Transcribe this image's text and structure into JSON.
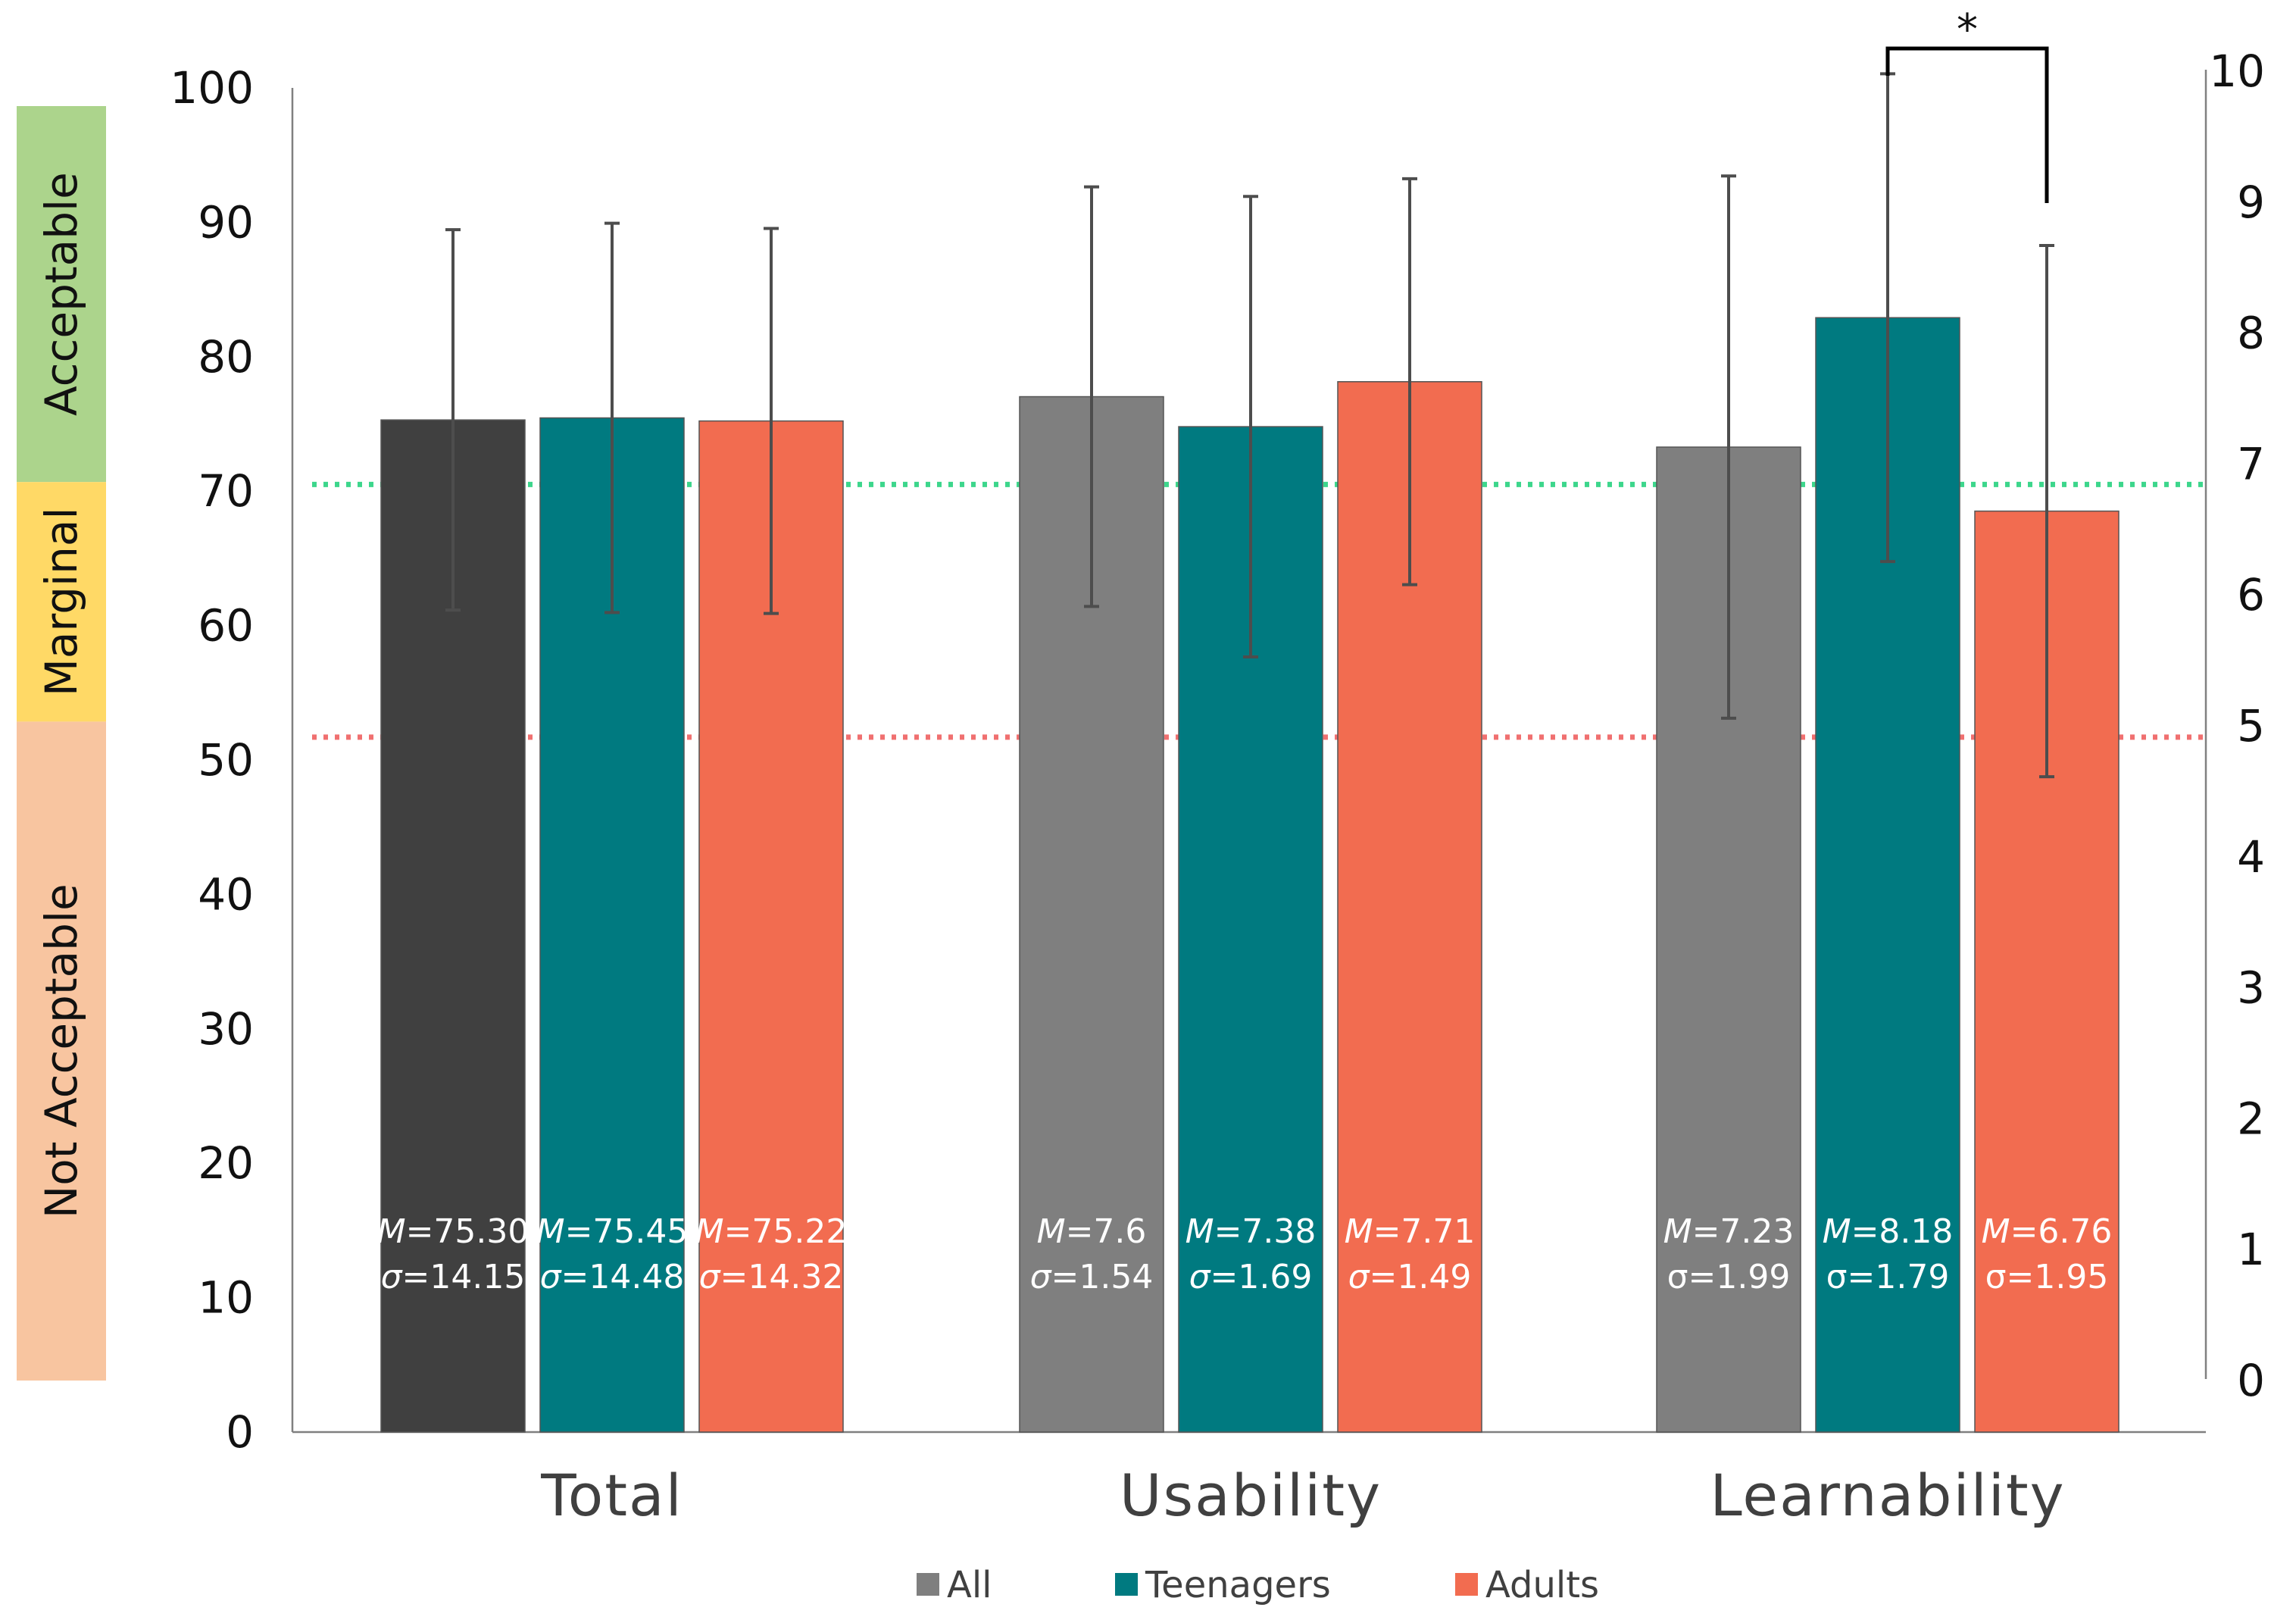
{
  "chart_data": {
    "type": "bar",
    "categories": [
      "Total",
      "Usability",
      "Learnability"
    ],
    "series": [
      {
        "name": "All",
        "color": "#7f7f7f",
        "colors": [
          "#404040",
          "#7f7f7f",
          "#7f7f7f"
        ],
        "values": [
          75.3,
          7.6,
          7.23
        ],
        "sd": [
          14.15,
          1.54,
          1.99
        ],
        "mean_labels": [
          "75.30",
          "7.6",
          "7.23"
        ],
        "sd_labels": [
          "14.15",
          "1.54",
          "1.99"
        ],
        "sd_italic": [
          true,
          true,
          false
        ]
      },
      {
        "name": "Teenagers",
        "color": "#007a80",
        "values": [
          75.45,
          7.38,
          8.18
        ],
        "sd": [
          14.48,
          1.69,
          1.79
        ],
        "mean_labels": [
          "75.45",
          "7.38",
          "8.18"
        ],
        "sd_labels": [
          "14.48",
          "1.69",
          "1.79"
        ],
        "sd_italic": [
          true,
          true,
          false
        ]
      },
      {
        "name": "Adults",
        "color": "#f26c50",
        "values": [
          75.22,
          7.71,
          6.76
        ],
        "sd": [
          14.32,
          1.49,
          1.95
        ],
        "mean_labels": [
          "75.22",
          "7.71",
          "6.76"
        ],
        "sd_labels": [
          "14.32",
          "1.49",
          "1.95"
        ],
        "sd_italic": [
          true,
          true,
          false
        ]
      }
    ],
    "axis_assignment": [
      "left",
      "right",
      "right"
    ],
    "y_left": {
      "range": [
        0,
        100
      ],
      "ticks": [
        "0",
        "10",
        "20",
        "30",
        "40",
        "50",
        "60",
        "70",
        "80",
        "90",
        "100"
      ]
    },
    "y_right": {
      "range": [
        0,
        10
      ],
      "ticks": [
        "0",
        "1",
        "2",
        "3",
        "4",
        "5",
        "6",
        "7",
        "8",
        "9",
        "10"
      ]
    },
    "thresholds": [
      {
        "value": 70.5,
        "color": "#3dd68c"
      },
      {
        "value": 51.7,
        "color": "#f07070"
      }
    ],
    "acceptability_bands": [
      {
        "label": "Acceptable",
        "from": 70.5,
        "to": 100,
        "color": "#acd48c"
      },
      {
        "label": "Marginal",
        "from": 51.7,
        "to": 70.5,
        "color": "#ffd966"
      },
      {
        "label": "Not Acceptable",
        "from": 0,
        "to": 51.7,
        "color": "#f8c5a0"
      }
    ],
    "significance": {
      "category": "Learnability",
      "between": [
        "Teenagers",
        "Adults"
      ],
      "label": "*"
    },
    "mean_prefix": "M",
    "sd_prefix": "σ",
    "legend_position": "bottom",
    "grid": false
  }
}
